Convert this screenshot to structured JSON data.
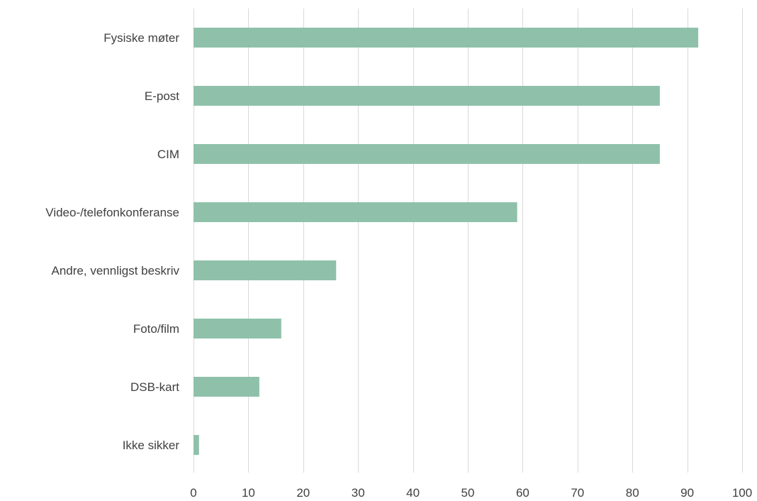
{
  "chart_data": {
    "type": "bar",
    "orientation": "horizontal",
    "title": "",
    "xlabel": "",
    "ylabel": "",
    "categories": [
      "Fysiske møter",
      "E-post",
      "CIM",
      "Video-/telefonkonferanse",
      "Andre, vennligst beskriv",
      "Foto/film",
      "DSB-kart",
      "Ikke sikker"
    ],
    "values": [
      92,
      85,
      85,
      59,
      26,
      16,
      12,
      1
    ],
    "xlim": [
      0,
      100
    ],
    "x_ticks": [
      0,
      10,
      20,
      30,
      40,
      50,
      60,
      70,
      80,
      90,
      100
    ],
    "grid": "vertical",
    "legend": "none",
    "bar_color": "#8fc1aa",
    "grid_color": "#d9d9d9",
    "text_color": "#404040"
  }
}
